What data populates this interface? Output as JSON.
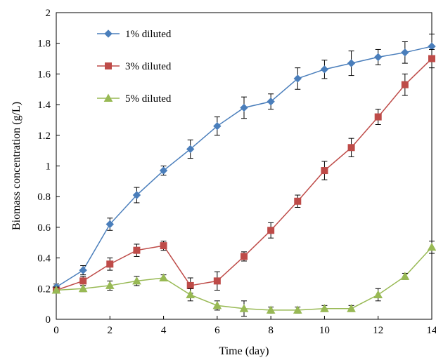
{
  "chart_data": {
    "type": "line",
    "xlabel": "Time (day)",
    "ylabel": "Biomass concentration (g/L)",
    "xlim": [
      0,
      14
    ],
    "ylim": [
      0,
      2
    ],
    "x_ticks": [
      0,
      2,
      4,
      6,
      8,
      10,
      12,
      14
    ],
    "x_tick_labels": [
      "0",
      "2",
      "4",
      "6",
      "8",
      "10",
      "12",
      "14"
    ],
    "y_ticks": [
      0,
      0.2,
      0.4,
      0.6,
      0.8,
      1,
      1.2,
      1.4,
      1.6,
      1.8,
      2
    ],
    "y_tick_labels": [
      "0",
      "0.2",
      "0.4",
      "0.6",
      "0.8",
      "1",
      "1.2",
      "1.4",
      "1.6",
      "1.8",
      "2"
    ],
    "grid": false,
    "legend_position": "top-left",
    "x": [
      0,
      1,
      2,
      3,
      4,
      5,
      6,
      7,
      8,
      9,
      10,
      11,
      12,
      13,
      14
    ],
    "series": [
      {
        "name": "1% diluted",
        "marker": "diamond",
        "color": "#4A7EBB",
        "values": [
          0.21,
          0.32,
          0.62,
          0.81,
          0.97,
          1.11,
          1.26,
          1.38,
          1.42,
          1.57,
          1.63,
          1.67,
          1.71,
          1.74,
          1.78
        ],
        "errors": [
          0.02,
          0.03,
          0.04,
          0.05,
          0.03,
          0.06,
          0.06,
          0.07,
          0.05,
          0.07,
          0.06,
          0.08,
          0.05,
          0.07,
          0.08
        ]
      },
      {
        "name": "3% diluted",
        "marker": "square",
        "color": "#BE4B48",
        "values": [
          0.19,
          0.25,
          0.36,
          0.45,
          0.48,
          0.22,
          0.25,
          0.41,
          0.58,
          0.77,
          0.97,
          1.12,
          1.32,
          1.53,
          1.7
        ],
        "errors": [
          0.02,
          0.03,
          0.04,
          0.04,
          0.03,
          0.05,
          0.06,
          0.03,
          0.05,
          0.04,
          0.06,
          0.06,
          0.05,
          0.07,
          0.06
        ]
      },
      {
        "name": "5% diluted",
        "marker": "triangle",
        "color": "#98B954",
        "values": [
          0.19,
          0.2,
          0.22,
          0.25,
          0.27,
          0.16,
          0.09,
          0.07,
          0.06,
          0.06,
          0.07,
          0.07,
          0.16,
          0.28,
          0.47
        ],
        "errors": [
          0.02,
          0.02,
          0.03,
          0.03,
          0.02,
          0.04,
          0.03,
          0.05,
          0.02,
          0.02,
          0.02,
          0.02,
          0.04,
          0.02,
          0.04
        ]
      }
    ]
  }
}
